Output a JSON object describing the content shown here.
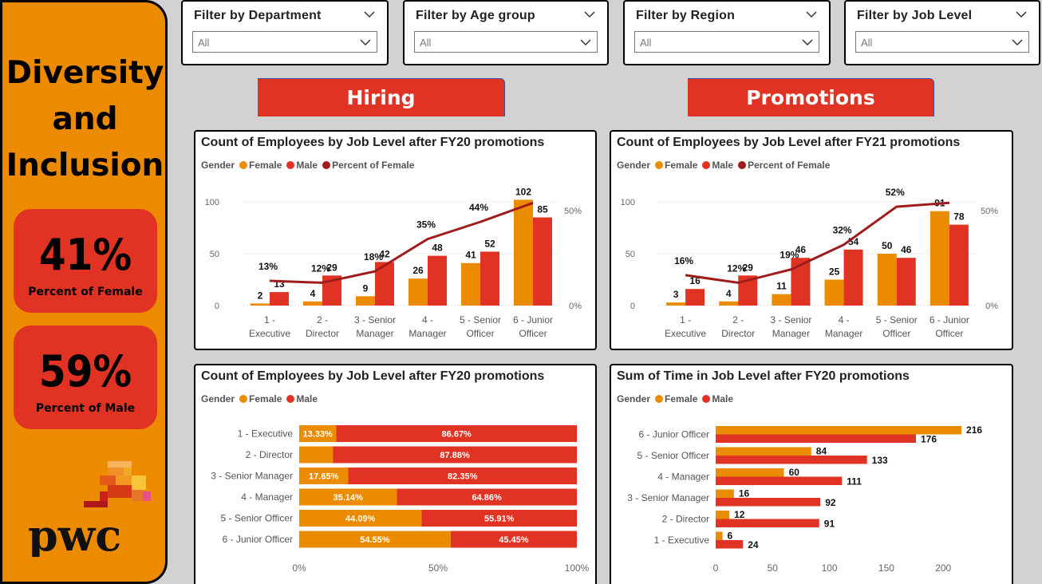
{
  "sidebar": {
    "title_lines": [
      "Diversity",
      "and",
      "Inclusion"
    ],
    "kpis": [
      {
        "value": "41%",
        "label": "Percent of Female"
      },
      {
        "value": "59%",
        "label": "Percent of Male"
      }
    ],
    "logo_text": "pwc"
  },
  "filters": [
    {
      "title": "Filter by Department",
      "value": "All"
    },
    {
      "title": "Filter by Age group",
      "value": "All"
    },
    {
      "title": "Filter by Region",
      "value": "All"
    },
    {
      "title": "Filter by Job Level",
      "value": "All"
    }
  ],
  "sections": {
    "hiring": "Hiring",
    "promotions": "Promotions"
  },
  "colors": {
    "female": "#ea8b00",
    "male": "#e13323",
    "percent_line": "#a01c1c",
    "accent_orange": "#ec8a00",
    "accent_red": "#e13323"
  },
  "legend": {
    "title": "Gender",
    "female": "Female",
    "male": "Male",
    "percent": "Percent of Female"
  },
  "chart_data": [
    {
      "id": "hiring_combo",
      "type": "bar",
      "title": "Count of Employees by Job Level after FY20 promotions",
      "categories": [
        [
          "1 -",
          "Executive"
        ],
        [
          "2 -",
          "Director"
        ],
        [
          "3 - Senior",
          "Manager"
        ],
        [
          "4 -",
          "Manager"
        ],
        [
          "5 - Senior",
          "Officer"
        ],
        [
          "6 - Junior",
          "Officer"
        ]
      ],
      "series": [
        {
          "name": "Female",
          "values": [
            2,
            4,
            9,
            26,
            41,
            102
          ]
        },
        {
          "name": "Male",
          "values": [
            13,
            29,
            42,
            48,
            52,
            85
          ]
        },
        {
          "name": "Percent of Female",
          "type": "line",
          "values": [
            13,
            12,
            18,
            35,
            44,
            54
          ],
          "labels": [
            "13%",
            "12%",
            "18%",
            "35%",
            "44%",
            ""
          ]
        }
      ],
      "y_ticks": [
        "0",
        "50",
        "100"
      ],
      "ylim": [
        0,
        110
      ],
      "y2_ticks": [
        "0%",
        "50%"
      ],
      "y2lim": [
        0,
        60
      ]
    },
    {
      "id": "promotions_combo",
      "type": "bar",
      "title": "Count of Employees by Job Level after FY21 promotions",
      "categories": [
        [
          "1 -",
          "Executive"
        ],
        [
          "2 -",
          "Director"
        ],
        [
          "3 - Senior",
          "Manager"
        ],
        [
          "4 -",
          "Manager"
        ],
        [
          "5 - Senior",
          "Officer"
        ],
        [
          "6 - Junior",
          "Officer"
        ]
      ],
      "series": [
        {
          "name": "Female",
          "values": [
            3,
            4,
            11,
            25,
            50,
            91
          ]
        },
        {
          "name": "Male",
          "values": [
            16,
            29,
            46,
            54,
            46,
            78
          ]
        },
        {
          "name": "Percent of Female",
          "type": "line",
          "values": [
            16,
            12,
            19,
            32,
            52,
            54
          ],
          "labels": [
            "16%",
            "12%",
            "19%",
            "32%",
            "52%",
            ""
          ]
        }
      ],
      "y_ticks": [
        "0",
        "50",
        "100"
      ],
      "ylim": [
        0,
        110
      ],
      "y2_ticks": [
        "0%",
        "50%"
      ],
      "y2lim": [
        0,
        60
      ]
    },
    {
      "id": "hiring_stacked",
      "type": "bar",
      "orientation": "horizontal",
      "stacked_percent": true,
      "title": "Count of Employees by Job Level after FY20 promotions",
      "categories": [
        "1 - Executive",
        "2 - Director",
        "3 - Senior Manager",
        "4 - Manager",
        "5 - Senior Officer",
        "6 - Junior Officer"
      ],
      "series": [
        {
          "name": "Female",
          "values": [
            13.33,
            12.12,
            17.65,
            35.14,
            44.09,
            54.55
          ],
          "labels": [
            "13.33%",
            "",
            "17.65%",
            "35.14%",
            "44.09%",
            "54.55%"
          ]
        },
        {
          "name": "Male",
          "values": [
            86.67,
            87.88,
            82.35,
            64.86,
            55.91,
            45.45
          ],
          "labels": [
            "86.67%",
            "87.88%",
            "82.35%",
            "64.86%",
            "55.91%",
            "45.45%"
          ]
        }
      ],
      "x_ticks": [
        "0%",
        "50%",
        "100%"
      ],
      "xlim": [
        0,
        100
      ]
    },
    {
      "id": "promotions_time",
      "type": "bar",
      "orientation": "horizontal",
      "title": "Sum of Time in Job Level after FY20 promotions",
      "categories": [
        "6 - Junior Officer",
        "5 - Senior Officer",
        "4 - Manager",
        "3 - Senior Manager",
        "2 - Director",
        "1 - Executive"
      ],
      "series": [
        {
          "name": "Female",
          "values": [
            216,
            84,
            60,
            16,
            12,
            6
          ]
        },
        {
          "name": "Male",
          "values": [
            176,
            133,
            111,
            92,
            91,
            24
          ]
        }
      ],
      "x_ticks": [
        "0",
        "50",
        "100",
        "150",
        "200"
      ],
      "xlim": [
        0,
        230
      ]
    }
  ]
}
